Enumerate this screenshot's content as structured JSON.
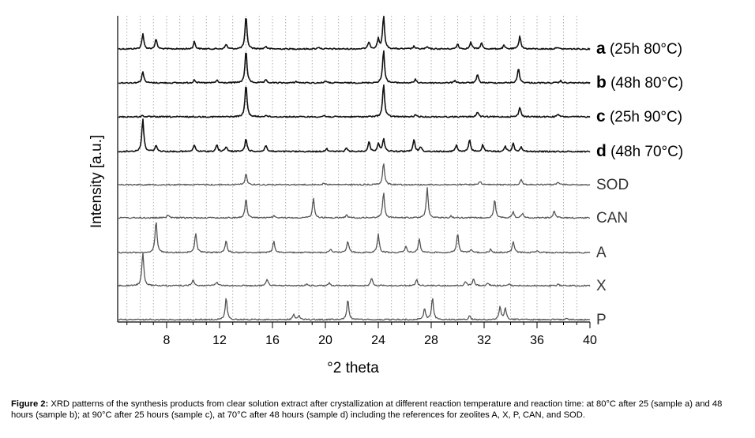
{
  "chart_data": {
    "type": "line",
    "title": "",
    "xlabel": "°2 theta",
    "ylabel": "Intensity [a.u.]",
    "xlim": [
      4.3,
      40
    ],
    "x_ticks": [
      8,
      12,
      16,
      20,
      24,
      28,
      32,
      36,
      40
    ],
    "x_tick_labels": [
      "8",
      "12",
      "16",
      "20",
      "24",
      "28",
      "32",
      "36",
      "40"
    ],
    "grid": "vertical-dotted",
    "legend": "right-of-each-trace",
    "series": [
      {
        "name": "a",
        "label_bold": "a",
        "label_rest": " (25h 80°C)",
        "color": "#111111",
        "width": 1.6,
        "height": 1,
        "peaks": [
          [
            6.2,
            0.45
          ],
          [
            7.2,
            0.3
          ],
          [
            10.1,
            0.22
          ],
          [
            12.5,
            0.14
          ],
          [
            14.0,
            1.0
          ],
          [
            15.5,
            0.08
          ],
          [
            19.5,
            0.06
          ],
          [
            23.3,
            0.22
          ],
          [
            24.0,
            0.3
          ],
          [
            24.4,
            1.0
          ],
          [
            26.7,
            0.08
          ],
          [
            27.7,
            0.06
          ],
          [
            30.0,
            0.15
          ],
          [
            31.0,
            0.2
          ],
          [
            31.8,
            0.18
          ],
          [
            33.5,
            0.1
          ],
          [
            34.7,
            0.4
          ],
          [
            37.5,
            0.06
          ]
        ]
      },
      {
        "name": "b",
        "label_bold": "b",
        "label_rest": " (48h 80°C)",
        "color": "#111111",
        "width": 1.6,
        "height": 1,
        "peaks": [
          [
            6.2,
            0.35
          ],
          [
            10.1,
            0.1
          ],
          [
            11.8,
            0.08
          ],
          [
            14.0,
            1.0
          ],
          [
            15.5,
            0.08
          ],
          [
            17.8,
            0.05
          ],
          [
            20.0,
            0.06
          ],
          [
            24.4,
            1.0
          ],
          [
            26.8,
            0.1
          ],
          [
            29.8,
            0.08
          ],
          [
            31.5,
            0.25
          ],
          [
            34.6,
            0.45
          ],
          [
            37.8,
            0.06
          ]
        ]
      },
      {
        "name": "c",
        "label_bold": "c",
        "label_rest": " (25h 90°C)",
        "color": "#111111",
        "width": 1.6,
        "height": 1,
        "peaks": [
          [
            6.2,
            0.04
          ],
          [
            14.0,
            1.0
          ],
          [
            15.5,
            0.05
          ],
          [
            19.9,
            0.04
          ],
          [
            24.4,
            1.0
          ],
          [
            26.8,
            0.05
          ],
          [
            31.5,
            0.15
          ],
          [
            34.7,
            0.3
          ],
          [
            37.6,
            0.08
          ]
        ]
      },
      {
        "name": "d",
        "label_bold": "d",
        "label_rest": " (48h 70°C)",
        "color": "#111111",
        "width": 1.6,
        "height": 1,
        "peaks": [
          [
            6.2,
            1.0
          ],
          [
            7.2,
            0.2
          ],
          [
            10.1,
            0.2
          ],
          [
            11.8,
            0.2
          ],
          [
            12.5,
            0.15
          ],
          [
            14.0,
            0.4
          ],
          [
            15.5,
            0.2
          ],
          [
            20.1,
            0.1
          ],
          [
            21.6,
            0.1
          ],
          [
            23.3,
            0.3
          ],
          [
            24.0,
            0.25
          ],
          [
            24.4,
            0.4
          ],
          [
            26.7,
            0.35
          ],
          [
            27.2,
            0.15
          ],
          [
            29.9,
            0.2
          ],
          [
            30.9,
            0.35
          ],
          [
            31.9,
            0.2
          ],
          [
            33.6,
            0.15
          ],
          [
            34.2,
            0.25
          ],
          [
            34.8,
            0.15
          ]
        ]
      },
      {
        "name": "SOD",
        "label_bold": "",
        "label_rest": "SOD",
        "color": "#555555",
        "width": 1.3,
        "height": 0.67,
        "peaks": [
          [
            14.0,
            0.5
          ],
          [
            19.9,
            0.08
          ],
          [
            24.4,
            1.0
          ],
          [
            31.7,
            0.14
          ],
          [
            34.8,
            0.24
          ],
          [
            37.6,
            0.12
          ]
        ]
      },
      {
        "name": "CAN",
        "label_bold": "",
        "label_rest": "CAN",
        "color": "#555555",
        "width": 1.3,
        "height": 0.9,
        "peaks": [
          [
            8.1,
            0.1
          ],
          [
            14.0,
            0.64
          ],
          [
            16.1,
            0.06
          ],
          [
            19.1,
            0.64
          ],
          [
            21.6,
            0.1
          ],
          [
            24.4,
            0.86
          ],
          [
            27.7,
            1.0
          ],
          [
            29.5,
            0.06
          ],
          [
            32.8,
            0.6
          ],
          [
            34.2,
            0.2
          ],
          [
            34.9,
            0.14
          ],
          [
            37.3,
            0.24
          ]
        ]
      },
      {
        "name": "A",
        "label_bold": "",
        "label_rest": "A",
        "color": "#555555",
        "width": 1.3,
        "height": 0.96,
        "peaks": [
          [
            7.2,
            1.0
          ],
          [
            10.2,
            0.62
          ],
          [
            12.5,
            0.38
          ],
          [
            16.1,
            0.36
          ],
          [
            20.4,
            0.12
          ],
          [
            21.7,
            0.36
          ],
          [
            24.0,
            0.58
          ],
          [
            26.1,
            0.2
          ],
          [
            27.1,
            0.44
          ],
          [
            30.0,
            0.6
          ],
          [
            31.0,
            0.1
          ],
          [
            32.5,
            0.1
          ],
          [
            34.2,
            0.36
          ],
          [
            36.0,
            0.06
          ]
        ]
      },
      {
        "name": "X",
        "label_bold": "",
        "label_rest": "X",
        "color": "#555555",
        "width": 1.3,
        "height": 1.0,
        "peaks": [
          [
            6.2,
            1.0
          ],
          [
            10.0,
            0.18
          ],
          [
            11.8,
            0.12
          ],
          [
            15.6,
            0.2
          ],
          [
            18.6,
            0.04
          ],
          [
            20.3,
            0.08
          ],
          [
            23.5,
            0.24
          ],
          [
            26.9,
            0.2
          ],
          [
            30.6,
            0.12
          ],
          [
            31.2,
            0.2
          ],
          [
            32.3,
            0.08
          ],
          [
            33.9,
            0.04
          ],
          [
            37.6,
            0.04
          ]
        ]
      },
      {
        "name": "P",
        "label_bold": "",
        "label_rest": "P",
        "color": "#555555",
        "width": 1.3,
        "height": 0.66,
        "peaks": [
          [
            12.5,
            1.0
          ],
          [
            17.6,
            0.24
          ],
          [
            18.0,
            0.2
          ],
          [
            21.7,
            0.92
          ],
          [
            27.5,
            0.5
          ],
          [
            28.1,
            1.0
          ],
          [
            30.9,
            0.16
          ],
          [
            33.2,
            0.6
          ],
          [
            33.6,
            0.56
          ],
          [
            38.2,
            0.08
          ]
        ]
      }
    ]
  },
  "caption": {
    "label": "Figure 2:",
    "text": " XRD patterns of the synthesis products from clear solution extract after crystallization at different reaction temperature and reaction time: at 80°C after 25 (sample a) and 48 hours (sample b); at 90°C after 25 hours (sample c), at 70°C after 48 hours (sample d) including the references for zeolites A, X, P, CAN, and SOD."
  }
}
